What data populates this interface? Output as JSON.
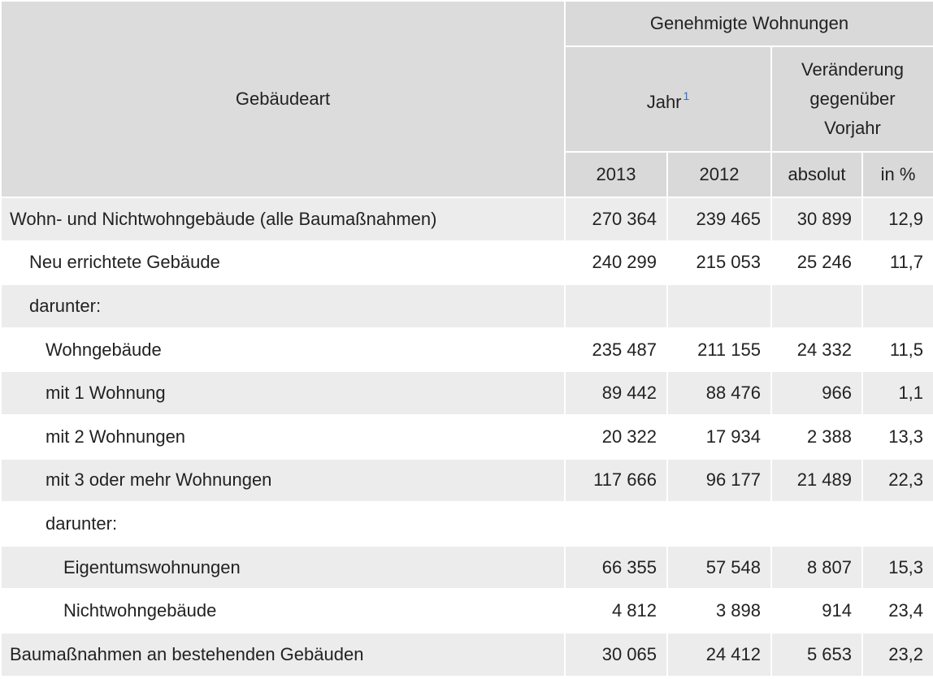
{
  "header": {
    "row_header": "Gebäudeart",
    "group": "Genehmigte Wohnungen",
    "year_group": "Jahr",
    "year_footnote": "1",
    "change_group_lines": [
      "Veränderung",
      "gegenüber",
      "Vorjahr"
    ],
    "columns": [
      "2013",
      "2012",
      "absolut",
      "in %"
    ]
  },
  "chart_data": {
    "type": "table",
    "columns": [
      "Gebäudeart",
      "2013",
      "2012",
      "absolut",
      "in %"
    ],
    "rows": [
      {
        "label": "Wohn- und Nichtwohngebäude (alle Baumaßnahmen)",
        "indent": 0,
        "values": [
          "270 364",
          "239 465",
          "30 899",
          "12,9"
        ]
      },
      {
        "label": "Neu errichtete Gebäude",
        "indent": 1,
        "values": [
          "240 299",
          "215 053",
          "25 246",
          "11,7"
        ]
      },
      {
        "label": "darunter:",
        "indent": 1,
        "values": [
          "",
          "",
          "",
          ""
        ]
      },
      {
        "label": "Wohngebäude",
        "indent": 2,
        "values": [
          "235 487",
          "211 155",
          "24 332",
          "11,5"
        ]
      },
      {
        "label": "mit 1 Wohnung",
        "indent": 2,
        "values": [
          "89 442",
          "88 476",
          "966",
          "1,1"
        ]
      },
      {
        "label": "mit 2 Wohnungen",
        "indent": 2,
        "values": [
          "20 322",
          "17 934",
          "2 388",
          "13,3"
        ]
      },
      {
        "label": "mit 3 oder mehr Wohnungen",
        "indent": 2,
        "values": [
          "117 666",
          "96 177",
          "21 489",
          "22,3"
        ]
      },
      {
        "label": "darunter:",
        "indent": 2,
        "values": [
          "",
          "",
          "",
          ""
        ]
      },
      {
        "label": "Eigentumswohnungen",
        "indent": 3,
        "values": [
          "66 355",
          "57 548",
          "8 807",
          "15,3"
        ]
      },
      {
        "label": "Nichtwohngebäude",
        "indent": 3,
        "values": [
          "4 812",
          "3 898",
          "914",
          "23,4"
        ]
      },
      {
        "label": "Baumaßnahmen an bestehenden Gebäuden",
        "indent": 0,
        "values": [
          "30 065",
          "24 412",
          "5 653",
          "23,2"
        ]
      }
    ]
  }
}
